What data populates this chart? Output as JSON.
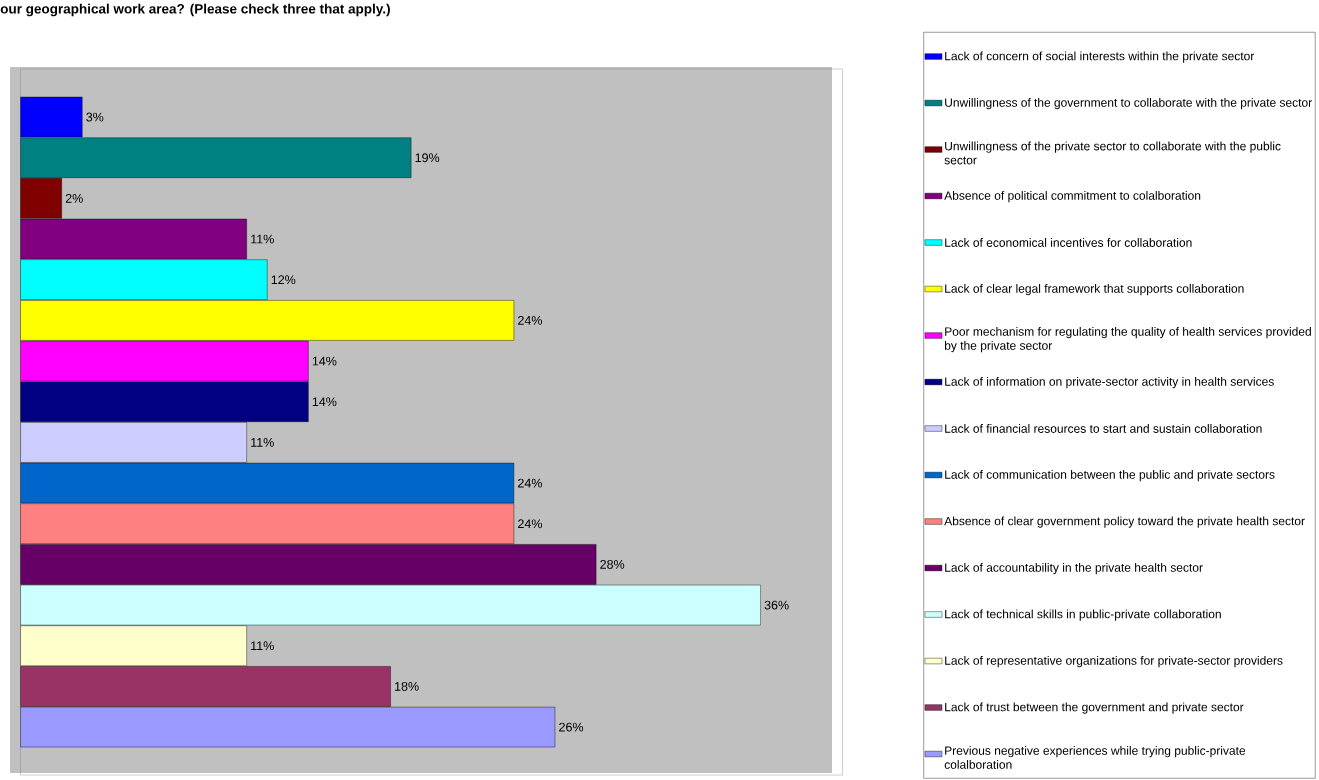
{
  "chart_data": {
    "type": "bar",
    "orientation": "horizontal",
    "title": "our geographical work area? (Please check three that apply.)",
    "categories": [
      null
    ],
    "legend": "right",
    "series": [
      {
        "name": "Lack of concern of social interests within the private sector",
        "color": "#0000ff",
        "values": [
          3
        ],
        "value_labels": [
          "3%"
        ]
      },
      {
        "name": "Unwillingness of the government to collaborate with the private sector",
        "color": "#008080",
        "values": [
          19
        ],
        "value_labels": [
          "19%"
        ]
      },
      {
        "name": "Unwillingness of the private sector to collaborate with the public sector",
        "color": "#800000",
        "values": [
          2
        ],
        "value_labels": [
          "2%"
        ]
      },
      {
        "name": "Absence of political commitment to colalboration",
        "color": "#800080",
        "values": [
          11
        ],
        "value_labels": [
          "11%"
        ]
      },
      {
        "name": "Lack of economical incentives for collaboration",
        "color": "#00ffff",
        "values": [
          12
        ],
        "value_labels": [
          "12%"
        ]
      },
      {
        "name": "Lack of clear legal framework that supports collaboration",
        "color": "#ffff00",
        "values": [
          24
        ],
        "value_labels": [
          "24%"
        ]
      },
      {
        "name": "Poor mechanism for regulating the quality of health services provided by the private sector",
        "color": "#ff00ff",
        "values": [
          14
        ],
        "value_labels": [
          "14%"
        ]
      },
      {
        "name": "Lack of information on private-sector activity in health services",
        "color": "#000080",
        "values": [
          14
        ],
        "value_labels": [
          "14%"
        ]
      },
      {
        "name": "Lack of financial resources to start and sustain collaboration",
        "color": "#ccccff",
        "values": [
          11
        ],
        "value_labels": [
          "11%"
        ]
      },
      {
        "name": "Lack of communication between the public and private sectors",
        "color": "#0066cc",
        "values": [
          24
        ],
        "value_labels": [
          "24%"
        ]
      },
      {
        "name": "Absence of clear government policy toward the private health sector",
        "color": "#ff8080",
        "values": [
          24
        ],
        "value_labels": [
          "24%"
        ]
      },
      {
        "name": "Lack of accountability in the private health sector",
        "color": "#660066",
        "values": [
          28
        ],
        "value_labels": [
          "28%"
        ]
      },
      {
        "name": "Lack of technical skills in public-private collaboration",
        "color": "#ccffff",
        "values": [
          36
        ],
        "value_labels": [
          "36%"
        ]
      },
      {
        "name": "Lack of representative organizations for private-sector providers",
        "color": "#ffffcc",
        "values": [
          11
        ],
        "value_labels": [
          "11%"
        ]
      },
      {
        "name": "Lack of trust between the government and private sector",
        "color": "#993366",
        "values": [
          18
        ],
        "value_labels": [
          "18%"
        ]
      },
      {
        "name": "Previous negative experiences while trying public-private colalboration",
        "color": "#9999ff",
        "values": [
          26
        ],
        "value_labels": [
          "26%"
        ]
      }
    ]
  }
}
